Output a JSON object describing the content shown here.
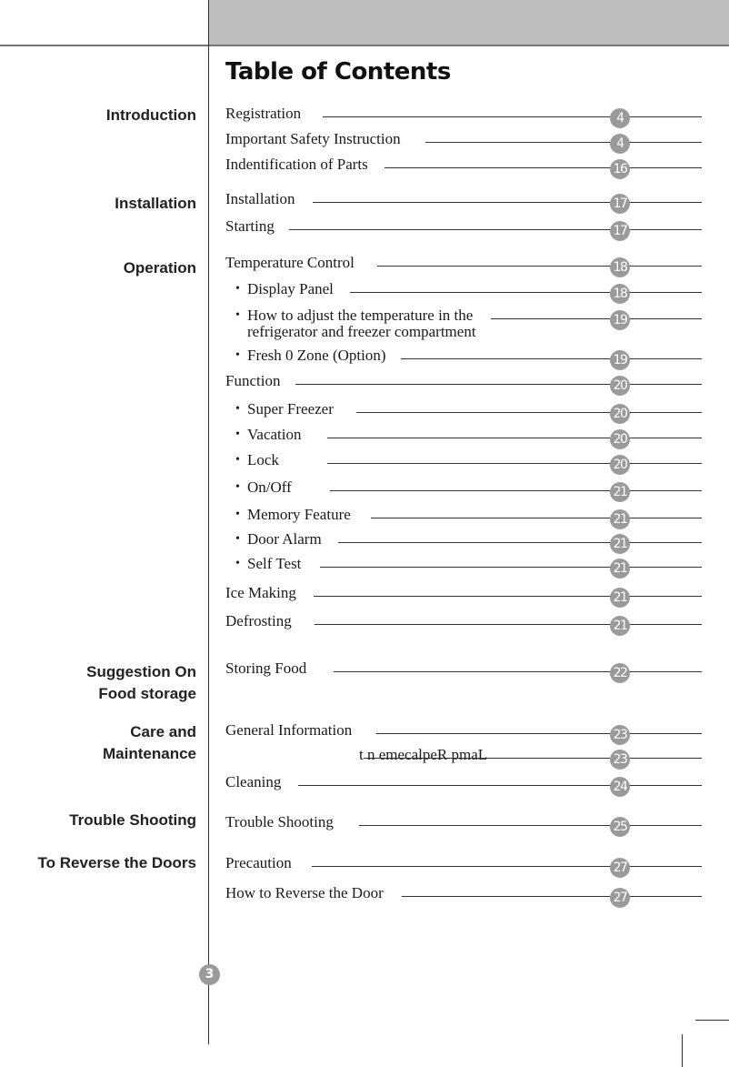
{
  "title": "Table of Contents",
  "page_number": "3",
  "colors": {
    "header_band": "#bdbdbd",
    "badge": "#9a9a9a"
  },
  "sections": [
    {
      "lines": [
        "Introduction"
      ]
    },
    {
      "lines": [
        "Installation"
      ]
    },
    {
      "lines": [
        "Operation"
      ]
    },
    {
      "lines": [
        "Suggestion On",
        "Food storage"
      ]
    },
    {
      "lines": [
        "Care and",
        "Maintenance"
      ]
    },
    {
      "lines": [
        "Trouble Shooting"
      ]
    },
    {
      "lines": [
        "To Reverse the Doors"
      ]
    }
  ],
  "entries": [
    {
      "label": "Registration",
      "page": "4",
      "sub": false
    },
    {
      "label": "Important Safety Instruction",
      "page": "4",
      "sub": false
    },
    {
      "label": "Indentification of Parts",
      "page": "16",
      "sub": false
    },
    {
      "label": "Installation",
      "page": "17",
      "sub": false
    },
    {
      "label": "Starting",
      "page": "17",
      "sub": false
    },
    {
      "label": "Temperature Control",
      "page": "18",
      "sub": false
    },
    {
      "label": "Display Panel",
      "page": "18",
      "sub": true
    },
    {
      "label": "How to adjust the temperature in the",
      "label2": "refrigerator and freezer compartment",
      "page": "19",
      "sub": true
    },
    {
      "label": "Fresh 0 Zone (Option)",
      "page": "19",
      "sub": true
    },
    {
      "label": "Function",
      "page": "20",
      "sub": false
    },
    {
      "label": "Super Freezer",
      "page": "20",
      "sub": true
    },
    {
      "label": "Vacation",
      "page": "20",
      "sub": true
    },
    {
      "label": "Lock",
      "page": "20",
      "sub": true
    },
    {
      "label": "On/Off",
      "page": "21",
      "sub": true
    },
    {
      "label": "Memory Feature",
      "page": "21",
      "sub": true
    },
    {
      "label": "Door Alarm",
      "page": "21",
      "sub": true
    },
    {
      "label": "Self Test",
      "page": "21",
      "sub": true
    },
    {
      "label": "Ice Making",
      "page": "21",
      "sub": false
    },
    {
      "label": "Defrosting",
      "page": "21",
      "sub": false
    },
    {
      "label": "Storing Food",
      "page": "22",
      "sub": false
    },
    {
      "label": "General Information",
      "page": "23",
      "sub": false
    },
    {
      "label": "t n emecalpeR pmaL",
      "page": "23",
      "sub": false
    },
    {
      "label": "Cleaning",
      "page": "24",
      "sub": false
    },
    {
      "label": "Trouble Shooting",
      "page": "25",
      "sub": false
    },
    {
      "label": "Precaution",
      "page": "27",
      "sub": false
    },
    {
      "label": "How to Reverse the Door",
      "page": "27",
      "sub": false
    }
  ]
}
